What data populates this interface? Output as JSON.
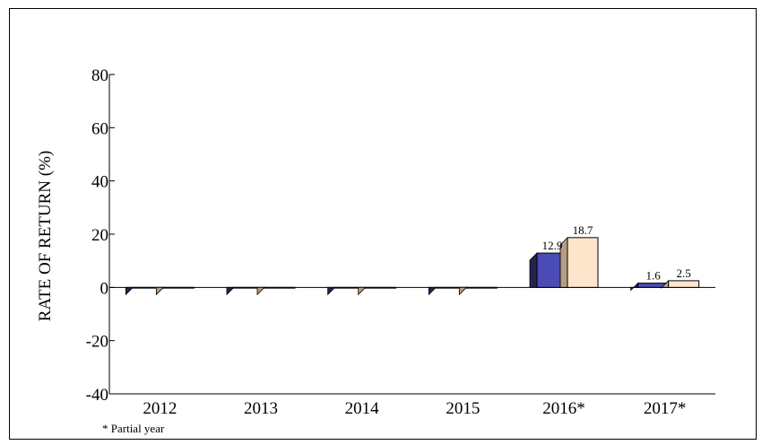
{
  "chart_data": {
    "type": "bar",
    "title": "",
    "xlabel": "",
    "ylabel": "RATE OF RETURN (%)",
    "ylim": [
      -40,
      80
    ],
    "yticks": [
      80,
      60,
      40,
      20,
      0,
      -20,
      -40
    ],
    "grid": false,
    "legend": "none",
    "categories": [
      "2012",
      "2013",
      "2014",
      "2015",
      "2016*",
      "2017*"
    ],
    "series": [
      {
        "color": "#4b4bb5",
        "side_color": "#24244f",
        "values": [
          0,
          0,
          0,
          0,
          12.9,
          1.6
        ],
        "labels": [
          "",
          "",
          "",
          "",
          "12.9",
          "1.6"
        ]
      },
      {
        "color": "#fde5cb",
        "side_color": "#b89d86",
        "values": [
          0,
          0,
          0,
          0,
          18.7,
          2.5
        ],
        "labels": [
          "",
          "",
          "",
          "",
          "18.7",
          "2.5"
        ]
      }
    ],
    "annotations": [
      "* Partial year"
    ]
  }
}
